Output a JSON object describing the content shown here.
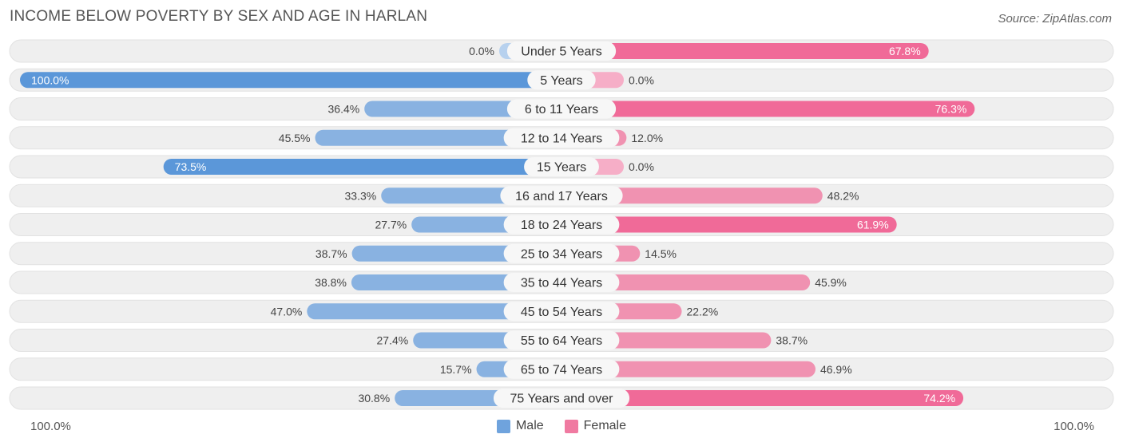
{
  "header": {
    "title": "INCOME BELOW POVERTY BY SEX AND AGE IN HARLAN",
    "source": "Source: ZipAtlas.com"
  },
  "axis": {
    "left_label": "100.0%",
    "right_label": "100.0%"
  },
  "colors": {
    "male": "#6fa3dd",
    "male_strong": "#5b97d9",
    "male_light": "#b7d1ee",
    "female": "#f07aa1",
    "female_strong": "#f06a98",
    "female_light": "#f6aec7",
    "row_bg": "#efefef"
  },
  "chart_data": {
    "type": "bar",
    "orientation": "horizontal-diverging",
    "categories": [
      "Under 5 Years",
      "5 Years",
      "6 to 11 Years",
      "12 to 14 Years",
      "15 Years",
      "16 and 17 Years",
      "18 to 24 Years",
      "25 to 34 Years",
      "35 to 44 Years",
      "45 to 54 Years",
      "55 to 64 Years",
      "65 to 74 Years",
      "75 Years and over"
    ],
    "series": [
      {
        "name": "Male",
        "values": [
          0.0,
          100.0,
          36.4,
          45.5,
          73.5,
          33.3,
          27.7,
          38.7,
          38.8,
          47.0,
          27.4,
          15.7,
          30.8
        ]
      },
      {
        "name": "Female",
        "values": [
          67.8,
          0.0,
          76.3,
          12.0,
          0.0,
          48.2,
          61.9,
          14.5,
          45.9,
          22.2,
          38.7,
          46.9,
          74.2
        ]
      }
    ],
    "value_labels": {
      "male": [
        "0.0%",
        "100.0%",
        "36.4%",
        "45.5%",
        "73.5%",
        "33.3%",
        "27.7%",
        "38.7%",
        "38.8%",
        "47.0%",
        "27.4%",
        "15.7%",
        "30.8%"
      ],
      "female": [
        "67.8%",
        "0.0%",
        "76.3%",
        "12.0%",
        "0.0%",
        "48.2%",
        "61.9%",
        "14.5%",
        "45.9%",
        "22.2%",
        "38.7%",
        "46.9%",
        "74.2%"
      ]
    },
    "xlim": [
      0,
      100
    ],
    "legend_position": "bottom-center"
  }
}
